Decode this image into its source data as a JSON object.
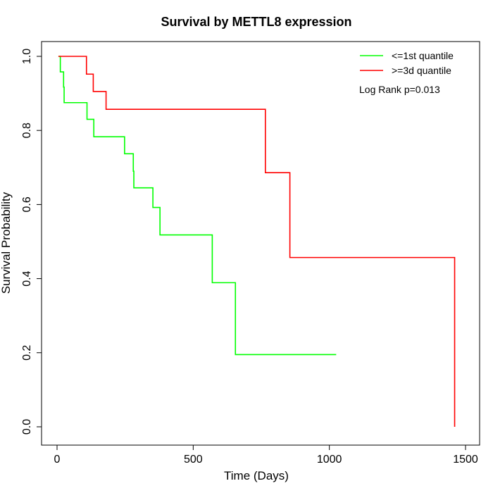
{
  "chart_data": {
    "type": "line",
    "title": "Survival by METTL8 expression",
    "xlabel": "Time (Days)",
    "ylabel": "Survival Probability",
    "xlim": [
      0,
      1500
    ],
    "ylim": [
      0,
      1.0
    ],
    "x_ticks": [
      "0",
      "500",
      "1000",
      "1500"
    ],
    "x_tick_values": [
      0,
      500,
      1000,
      1500
    ],
    "y_ticks": [
      "0.0",
      "0.2",
      "0.4",
      "0.6",
      "0.8",
      "1.0"
    ],
    "y_tick_values": [
      0,
      0.2,
      0.4,
      0.6,
      0.8,
      1.0
    ],
    "annotation": "Log Rank p=0.013",
    "legend_position": "top-right",
    "grid": false,
    "series": [
      {
        "name": "<=1st quantile",
        "color": "#00ff00",
        "steps": [
          [
            5,
            1.0
          ],
          [
            12,
            0.958
          ],
          [
            24,
            0.917
          ],
          [
            26,
            0.875
          ],
          [
            110,
            0.83
          ],
          [
            135,
            0.783
          ],
          [
            248,
            0.737
          ],
          [
            280,
            0.69
          ],
          [
            282,
            0.645
          ],
          [
            352,
            0.592
          ],
          [
            378,
            0.518
          ],
          [
            570,
            0.389
          ],
          [
            655,
            0.195
          ],
          [
            1025,
            0.195
          ]
        ]
      },
      {
        "name": ">=3d quantile",
        "color": "#ff0000",
        "steps": [
          [
            5,
            1.0
          ],
          [
            108,
            0.952
          ],
          [
            133,
            0.905
          ],
          [
            180,
            0.857
          ],
          [
            765,
            0.686
          ],
          [
            855,
            0.457
          ],
          [
            1460,
            0.0
          ]
        ]
      }
    ]
  }
}
